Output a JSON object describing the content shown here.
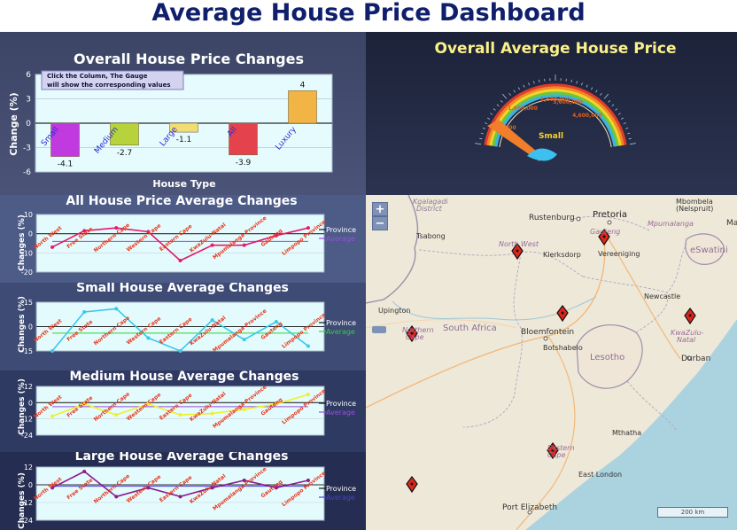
{
  "page": {
    "title": "Average House Price Dashboard"
  },
  "overall": {
    "title": "Overall House Price Changes",
    "xlabel": "House Type",
    "ylabel": "Change (%)",
    "tooltip_line1": "Click the Column, The Gauge",
    "tooltip_line2": "will show the corresponding values",
    "colors": [
      "#c03ae0",
      "#b6d33c",
      "#f2dd74",
      "#e4434e",
      "#f2b445"
    ]
  },
  "gauge": {
    "title": "Overall Average House Price",
    "selected": "Small",
    "tick_labels": [
      "600,000",
      "1,600,000",
      "2,600,000",
      "3,600,000",
      "4,600,000"
    ]
  },
  "provinces": [
    "North West",
    "Free State",
    "Northern Cape",
    "Western Cape",
    "Eastern Cape",
    "KwaZulu-Natal",
    "Mpumalanga Province",
    "Gauteng",
    "Limpopo Province"
  ],
  "province_label": "Province",
  "average_label": "Average",
  "small_chart": {
    "title": "Small House Average Changes",
    "ylabel": "Changes (%)"
  },
  "all_chart": {
    "title": "All House Price Average Changes",
    "ylabel": "Changes (%)"
  },
  "medium_chart": {
    "title": "Medium House Average Changes",
    "ylabel": "Changes (%)"
  },
  "large_chart": {
    "title": "Large House Average Changes",
    "ylabel": "Changes (%)"
  },
  "map": {
    "zoom_in": "+",
    "zoom_out": "−",
    "scale": "200 km",
    "labels": [
      {
        "text": "Kgalagadi",
        "style": "district"
      },
      {
        "text": "District",
        "style": "district"
      },
      {
        "text": "Rustenburg",
        "style": "city"
      },
      {
        "text": "Pretoria",
        "style": "city-big"
      },
      {
        "text": "Mbombela",
        "style": "city-sm"
      },
      {
        "text": "(Nelspruit)",
        "style": "city-sm"
      },
      {
        "text": "Mpumalanga",
        "style": "region"
      },
      {
        "text": "Ma",
        "style": "city"
      },
      {
        "text": "Tsabong",
        "style": "city-sm"
      },
      {
        "text": "Gauteng",
        "style": "region"
      },
      {
        "text": "North West",
        "style": "region"
      },
      {
        "text": "Klerksdorp",
        "style": "city-sm"
      },
      {
        "text": "Vereeniging",
        "style": "city-sm"
      },
      {
        "text": "eSwatini",
        "style": "country"
      },
      {
        "text": "Newcastle",
        "style": "city-sm"
      },
      {
        "text": "Upington",
        "style": "city-sm"
      },
      {
        "text": "Northern",
        "style": "region"
      },
      {
        "text": "Cape",
        "style": "region"
      },
      {
        "text": "South Africa",
        "style": "country-big"
      },
      {
        "text": "Bloemfontein",
        "style": "city"
      },
      {
        "text": "Botshabelo",
        "style": "city-sm"
      },
      {
        "text": "KwaZulu-",
        "style": "region"
      },
      {
        "text": "Natal",
        "style": "region"
      },
      {
        "text": "Lesotho",
        "style": "country"
      },
      {
        "text": "Durban",
        "style": "city"
      },
      {
        "text": "Mthatha",
        "style": "city-sm"
      },
      {
        "text": "Eastern",
        "style": "region"
      },
      {
        "text": "Cape",
        "style": "region"
      },
      {
        "text": "East London",
        "style": "city-sm"
      },
      {
        "text": "Port Elizabeth",
        "style": "city"
      }
    ]
  },
  "chart_data": [
    {
      "type": "bar",
      "categories": [
        "Small",
        "Medium",
        "Large",
        "All",
        "Luxury"
      ],
      "values": [
        -4.1,
        -2.7,
        -1.1,
        -3.9,
        4
      ],
      "title": "Overall House Price Changes",
      "xlabel": "House Type",
      "ylabel": "Change (%)",
      "ylim": [
        -6,
        6
      ],
      "yticks": [
        -6,
        -3,
        0,
        3,
        6
      ]
    },
    {
      "type": "line",
      "title": "All House Price Average Changes",
      "ylabel": "Changes (%)",
      "categories": [
        "North West",
        "Free State",
        "Northern Cape",
        "Western Cape",
        "Eastern Cape",
        "KwaZulu-Natal",
        "Mpumalanga Province",
        "Gauteng",
        "Limpopo Province"
      ],
      "series": [
        {
          "name": "Province",
          "values": [
            -7,
            1.5,
            3,
            1,
            -14,
            -6,
            -6,
            -1,
            3
          ]
        },
        {
          "name": "Average",
          "values": [
            -4,
            -4,
            -4,
            -4,
            -4,
            -4,
            -4,
            -4,
            -4
          ]
        }
      ],
      "ylim": [
        -20,
        10
      ],
      "yticks": [
        -20,
        -10,
        0,
        10
      ]
    },
    {
      "type": "line",
      "title": "Small House Average Changes",
      "ylabel": "Changes (%)",
      "categories": [
        "North West",
        "Free State",
        "Northern Cape",
        "Western Cape",
        "Eastern Cape",
        "KwaZulu-Natal",
        "Mpumalanga Province",
        "Gauteng",
        "Limpopo Province"
      ],
      "series": [
        {
          "name": "Province",
          "values": [
            -15,
            9,
            11,
            -7,
            -15,
            4,
            -8,
            3,
            -12
          ]
        },
        {
          "name": "Average",
          "values": [
            -4,
            -4,
            -4,
            -4,
            -4,
            -4,
            -4,
            -4,
            -4
          ]
        }
      ],
      "ylim": [
        -15,
        15
      ],
      "yticks": [
        -15,
        0,
        15
      ]
    },
    {
      "type": "line",
      "title": "Medium House Average Changes",
      "ylabel": "Changes (%)",
      "categories": [
        "North West",
        "Free State",
        "Northern Cape",
        "Western Cape",
        "Eastern Cape",
        "KwaZulu-Natal",
        "Mpumalanga Province",
        "Gauteng",
        "Limpopo Province"
      ],
      "series": [
        {
          "name": "Province",
          "values": [
            -10,
            -1,
            -9,
            -1,
            -9,
            -8,
            -5,
            -1,
            6
          ]
        },
        {
          "name": "Average",
          "values": [
            -3,
            -3,
            -3,
            -3,
            -3,
            -3,
            -3,
            -3,
            -3
          ]
        }
      ],
      "ylim": [
        -24,
        12
      ],
      "yticks": [
        -24,
        -12,
        0,
        12
      ]
    },
    {
      "type": "line",
      "title": "Large House Average Changes",
      "ylabel": "Changes (%)",
      "categories": [
        "North West",
        "Free State",
        "Northern Cape",
        "Western Cape",
        "Eastern Cape",
        "KwaZulu-Natal",
        "Mpumalanga Province",
        "Gauteng",
        "Limpopo Province"
      ],
      "series": [
        {
          "name": "Province",
          "values": [
            -2,
            9,
            -8,
            -2,
            -8,
            -2,
            3,
            -2,
            3
          ]
        },
        {
          "name": "Average",
          "values": [
            -1,
            -1,
            -1,
            -1,
            -1,
            -1,
            -1,
            -1,
            -1
          ]
        }
      ],
      "ylim": [
        -24,
        12
      ],
      "yticks": [
        -24,
        -12,
        0,
        12
      ]
    },
    {
      "type": "gauge",
      "title": "Overall Average House Price",
      "tick_labels": [
        "600,000",
        "1,600,000",
        "2,600,000",
        "3,600,000",
        "4,600,000"
      ],
      "selected": "Small"
    }
  ]
}
